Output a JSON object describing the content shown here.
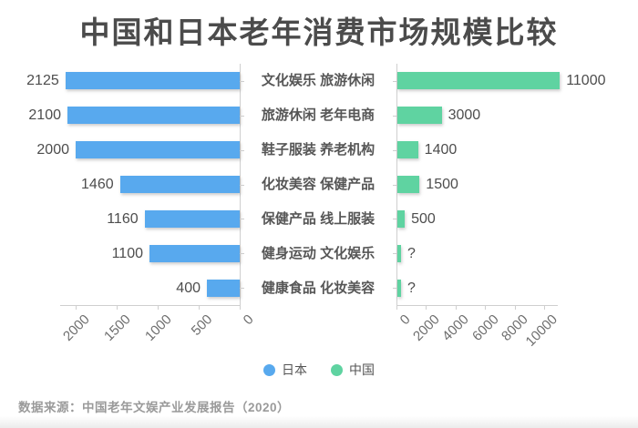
{
  "title": "中国和日本老年消费市场规模比较",
  "footer": "数据来源：中国老年文娱产业发展报告（2020）",
  "legend": [
    {
      "label": "日本",
      "color": "#58a9ee"
    },
    {
      "label": "中国",
      "color": "#5fd3a1"
    }
  ],
  "chart_data": {
    "type": "bar",
    "layout": "horizontal-tornado",
    "title": "中国和日本老年消费市场规模比较",
    "categories": [
      "文化娱乐 旅游休闲",
      "旅游休闲 老年电商",
      "鞋子服装 养老机构",
      "化妆美容 保健产品",
      "保健产品 线上服装",
      "健身运动 文化娱乐",
      "健康食品 化妆美容"
    ],
    "series": [
      {
        "name": "日本",
        "side": "left",
        "color": "#58a9ee",
        "values": [
          2125,
          2100,
          2000,
          1460,
          1160,
          1100,
          400
        ],
        "labels": [
          "2125",
          "2100",
          "2000",
          "1460",
          "1160",
          "1100",
          "400"
        ],
        "axis_ticks": [
          "2000",
          "1500",
          "1000",
          "500",
          "0"
        ],
        "axis_reversed": true,
        "axis_max": 2150
      },
      {
        "name": "中国",
        "side": "right",
        "color": "#5fd3a1",
        "values": [
          11000,
          3000,
          1400,
          1500,
          500,
          null,
          null
        ],
        "labels": [
          "11000",
          "3000",
          "1400",
          "1500",
          "500",
          "?",
          "?"
        ],
        "axis_ticks": [
          "0",
          "2000",
          "4000",
          "6000",
          "8000",
          "10000"
        ],
        "axis_reversed": false,
        "axis_max": 11000
      }
    ],
    "grid": false,
    "legend_position": "bottom",
    "source_note": "数据来源：中国老年文娱产业发展报告（2020）"
  }
}
